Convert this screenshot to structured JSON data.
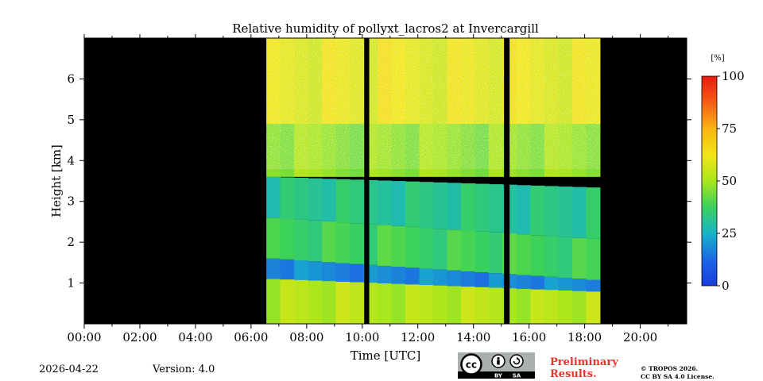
{
  "chart_data": {
    "type": "heatmap",
    "title": "Relative humidity of pollyxt_lacros2 at Invercargill",
    "xlabel": "Time [UTC]",
    "ylabel": "Height [km]",
    "xlim_hours": [
      0,
      21.67
    ],
    "ylim_km": [
      0,
      7.0
    ],
    "x_ticks": [
      "00:00",
      "02:00",
      "04:00",
      "06:00",
      "08:00",
      "10:00",
      "12:00",
      "14:00",
      "16:00",
      "18:00",
      "20:00"
    ],
    "x_tick_hours": [
      0,
      2,
      4,
      6,
      8,
      10,
      12,
      14,
      16,
      18,
      20
    ],
    "y_ticks": [
      "1",
      "2",
      "3",
      "4",
      "5",
      "6"
    ],
    "y_tick_values": [
      1,
      2,
      3,
      4,
      5,
      6
    ],
    "colorbar": {
      "unit": "[%]",
      "range": [
        0,
        100
      ],
      "ticks": [
        "0",
        "25",
        "50",
        "75",
        "100"
      ],
      "tick_values": [
        0,
        25,
        50,
        75,
        100
      ]
    },
    "measurement_period_hours": [
      6.55,
      18.55
    ],
    "data_gaps_hours": [
      [
        10.07,
        10.25
      ],
      [
        15.1,
        15.3
      ]
    ],
    "description_layers": [
      {
        "from_km": 0.0,
        "to_km": 1.1,
        "rh_percent": 52
      },
      {
        "from_km": 1.1,
        "to_km": 1.6,
        "rh_percent": 18
      },
      {
        "from_km": 1.6,
        "to_km": 2.6,
        "rh_percent": 38
      },
      {
        "from_km": 2.6,
        "to_km": 3.6,
        "rh_percent": 32
      },
      {
        "from_km": 3.6,
        "to_km": 4.9,
        "rh_percent": 48
      },
      {
        "from_km": 4.9,
        "to_km": 7.0,
        "rh_percent": 60
      }
    ],
    "background_color": "#000000"
  },
  "footer": {
    "date": "2026-04-22",
    "version": "Version: 4.0",
    "preliminary_line1": "Preliminary",
    "preliminary_line2": "Results.",
    "copyright_line1": "© TROPOS 2026.",
    "copyright_line2": "CC BY SA 4.0 License.",
    "badge_by": "BY",
    "badge_sa": "SA",
    "badge_cc": "cc"
  },
  "colors": {
    "prelim": "#e8332a",
    "badge_bg": "#aab0ad"
  }
}
